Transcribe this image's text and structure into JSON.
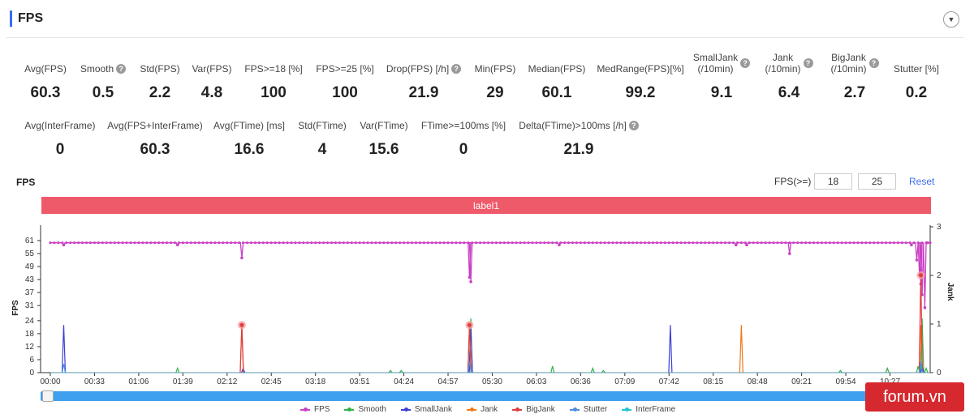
{
  "header": {
    "title": "FPS"
  },
  "stats_row1": [
    {
      "label": "Avg(FPS)",
      "value": "60.3",
      "help": false
    },
    {
      "label": "Smooth",
      "value": "0.5",
      "help": true
    },
    {
      "label": "Std(FPS)",
      "value": "2.2",
      "help": false
    },
    {
      "label": "Var(FPS)",
      "value": "4.8",
      "help": false
    },
    {
      "label": "FPS>=18 [%]",
      "value": "100",
      "help": false
    },
    {
      "label": "FPS>=25 [%]",
      "value": "100",
      "help": false
    },
    {
      "label": "Drop(FPS) [/h]",
      "value": "21.9",
      "help": true
    },
    {
      "label": "Min(FPS)",
      "value": "29",
      "help": false
    },
    {
      "label": "Median(FPS)",
      "value": "60.1",
      "help": false
    },
    {
      "label": "MedRange(FPS)[%]",
      "value": "99.2",
      "help": false
    },
    {
      "label": "SmallJank\n(/10min)",
      "value": "9.1",
      "help": true
    },
    {
      "label": "Jank\n(/10min)",
      "value": "6.4",
      "help": true
    },
    {
      "label": "BigJank\n(/10min)",
      "value": "2.7",
      "help": true
    },
    {
      "label": "Stutter [%]",
      "value": "0.2",
      "help": false
    }
  ],
  "stats_row2": [
    {
      "label": "Avg(InterFrame)",
      "value": "0",
      "help": false
    },
    {
      "label": "Avg(FPS+InterFrame)",
      "value": "60.3",
      "help": false
    },
    {
      "label": "Avg(FTime) [ms]",
      "value": "16.6",
      "help": false
    },
    {
      "label": "Std(FTime)",
      "value": "4",
      "help": false
    },
    {
      "label": "Var(FTime)",
      "value": "15.6",
      "help": false
    },
    {
      "label": "FTime>=100ms [%]",
      "value": "0",
      "help": false
    },
    {
      "label": "Delta(FTime)>100ms [/h]",
      "value": "21.9",
      "help": true
    }
  ],
  "chart_controls": {
    "title": "FPS",
    "filter_label": "FPS(>=)",
    "filter_value_1": "18",
    "filter_value_2": "25",
    "reset_label": "Reset",
    "band_label": "label1"
  },
  "watermark": "forum.vn",
  "chart_data": {
    "type": "line",
    "ylabel": "FPS",
    "y2label": "Jank",
    "ylim": [
      0,
      61
    ],
    "y_ticks": [
      0,
      6,
      12,
      18,
      24,
      31,
      37,
      43,
      49,
      55,
      61
    ],
    "y2lim": [
      0,
      3
    ],
    "y2_ticks": [
      0,
      1,
      2,
      3
    ],
    "x_tick_labels": [
      "00:00",
      "00:33",
      "01:06",
      "01:39",
      "02:12",
      "02:45",
      "03:18",
      "03:51",
      "04:24",
      "04:57",
      "05:30",
      "06:03",
      "06:36",
      "07:09",
      "07:42",
      "08:15",
      "08:48",
      "09:21",
      "09:54",
      "10:27"
    ],
    "x_max_seconds": 657,
    "grid": false,
    "legend_position": "bottom",
    "series": [
      {
        "name": "FPS",
        "color": "#c941c4",
        "axis": "left",
        "baseline": 60,
        "dips": [
          [
            10,
            59
          ],
          [
            95,
            59
          ],
          [
            143,
            53
          ],
          [
            313,
            44
          ],
          [
            314,
            42
          ],
          [
            380,
            59
          ],
          [
            512,
            59
          ],
          [
            520,
            59
          ],
          [
            552,
            55
          ],
          [
            643,
            59
          ],
          [
            647,
            52
          ],
          [
            649,
            45
          ],
          [
            650,
            41
          ],
          [
            651,
            36
          ],
          [
            653,
            30
          ],
          [
            655,
            60
          ]
        ]
      },
      {
        "name": "Smooth",
        "color": "#2fb344",
        "axis": "left",
        "baseline": 0,
        "spikes": [
          [
            95,
            2
          ],
          [
            254,
            1
          ],
          [
            262,
            1
          ],
          [
            314,
            25
          ],
          [
            375,
            3
          ],
          [
            405,
            2
          ],
          [
            413,
            1
          ],
          [
            590,
            1
          ],
          [
            625,
            2
          ],
          [
            648,
            3
          ],
          [
            651,
            25
          ],
          [
            654,
            2
          ]
        ]
      },
      {
        "name": "SmallJank",
        "color": "#3b3fd6",
        "axis": "left",
        "baseline": 0,
        "spikes": [
          [
            10,
            22
          ],
          [
            144,
            2
          ],
          [
            314,
            21
          ],
          [
            463,
            22
          ],
          [
            651,
            3
          ]
        ]
      },
      {
        "name": "Jank",
        "color": "#f07a1a",
        "axis": "left",
        "baseline": 0,
        "spikes": [
          [
            143,
            22
          ],
          [
            313,
            22
          ],
          [
            516,
            22
          ],
          [
            650,
            22
          ]
        ]
      },
      {
        "name": "BigJank",
        "color": "#e03b3b",
        "axis": "left",
        "baseline": 0,
        "spikes": [
          [
            143,
            22
          ],
          [
            313,
            22
          ],
          [
            650,
            45
          ]
        ]
      },
      {
        "name": "Stutter",
        "color": "#4a90e2",
        "axis": "left",
        "baseline": 0,
        "spikes": [
          [
            10,
            4
          ],
          [
            313,
            5
          ],
          [
            650,
            5
          ]
        ]
      },
      {
        "name": "InterFrame",
        "color": "#1cc7d8",
        "axis": "left",
        "baseline": 0,
        "spikes": []
      }
    ],
    "markers": [
      [
        143,
        22
      ],
      [
        313,
        22
      ],
      [
        650,
        45
      ]
    ]
  }
}
